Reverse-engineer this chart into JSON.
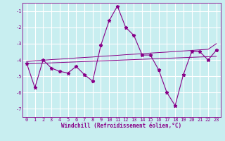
{
  "xlabel": "Windchill (Refroidissement éolien,°C)",
  "background_color": "#c8eef0",
  "grid_color": "#ffffff",
  "line_color": "#880088",
  "x_hours": [
    0,
    1,
    2,
    3,
    4,
    5,
    6,
    7,
    8,
    9,
    10,
    11,
    12,
    13,
    14,
    15,
    16,
    17,
    18,
    19,
    20,
    21,
    22,
    23
  ],
  "y_main": [
    -4.2,
    -5.7,
    -4.0,
    -4.5,
    -4.7,
    -4.8,
    -4.4,
    -4.9,
    -5.3,
    -3.1,
    -1.6,
    -0.7,
    -2.0,
    -2.5,
    -3.7,
    -3.7,
    -4.6,
    -6.0,
    -6.8,
    -4.9,
    -3.5,
    -3.5,
    -4.0,
    -3.4
  ],
  "y_avg1": [
    -4.1,
    -4.05,
    -4.02,
    -3.98,
    -3.95,
    -3.92,
    -3.88,
    -3.85,
    -3.82,
    -3.78,
    -3.75,
    -3.72,
    -3.68,
    -3.65,
    -3.62,
    -3.58,
    -3.55,
    -3.52,
    -3.48,
    -3.45,
    -3.42,
    -3.38,
    -3.35,
    -3.0
  ],
  "y_avg2": [
    -4.25,
    -4.22,
    -4.2,
    -4.18,
    -4.16,
    -4.14,
    -4.12,
    -4.1,
    -4.08,
    -4.06,
    -4.04,
    -4.02,
    -4.0,
    -3.98,
    -3.96,
    -3.94,
    -3.92,
    -3.9,
    -3.88,
    -3.86,
    -3.84,
    -3.82,
    -3.8,
    -3.78
  ],
  "ylim": [
    -7.5,
    -0.5
  ],
  "xlim": [
    -0.5,
    23.5
  ],
  "yticks": [
    -7,
    -6,
    -5,
    -4,
    -3,
    -2,
    -1
  ],
  "xticks": [
    0,
    1,
    2,
    3,
    4,
    5,
    6,
    7,
    8,
    9,
    10,
    11,
    12,
    13,
    14,
    15,
    16,
    17,
    18,
    19,
    20,
    21,
    22,
    23
  ],
  "tick_fontsize": 5.0,
  "xlabel_fontsize": 5.5
}
